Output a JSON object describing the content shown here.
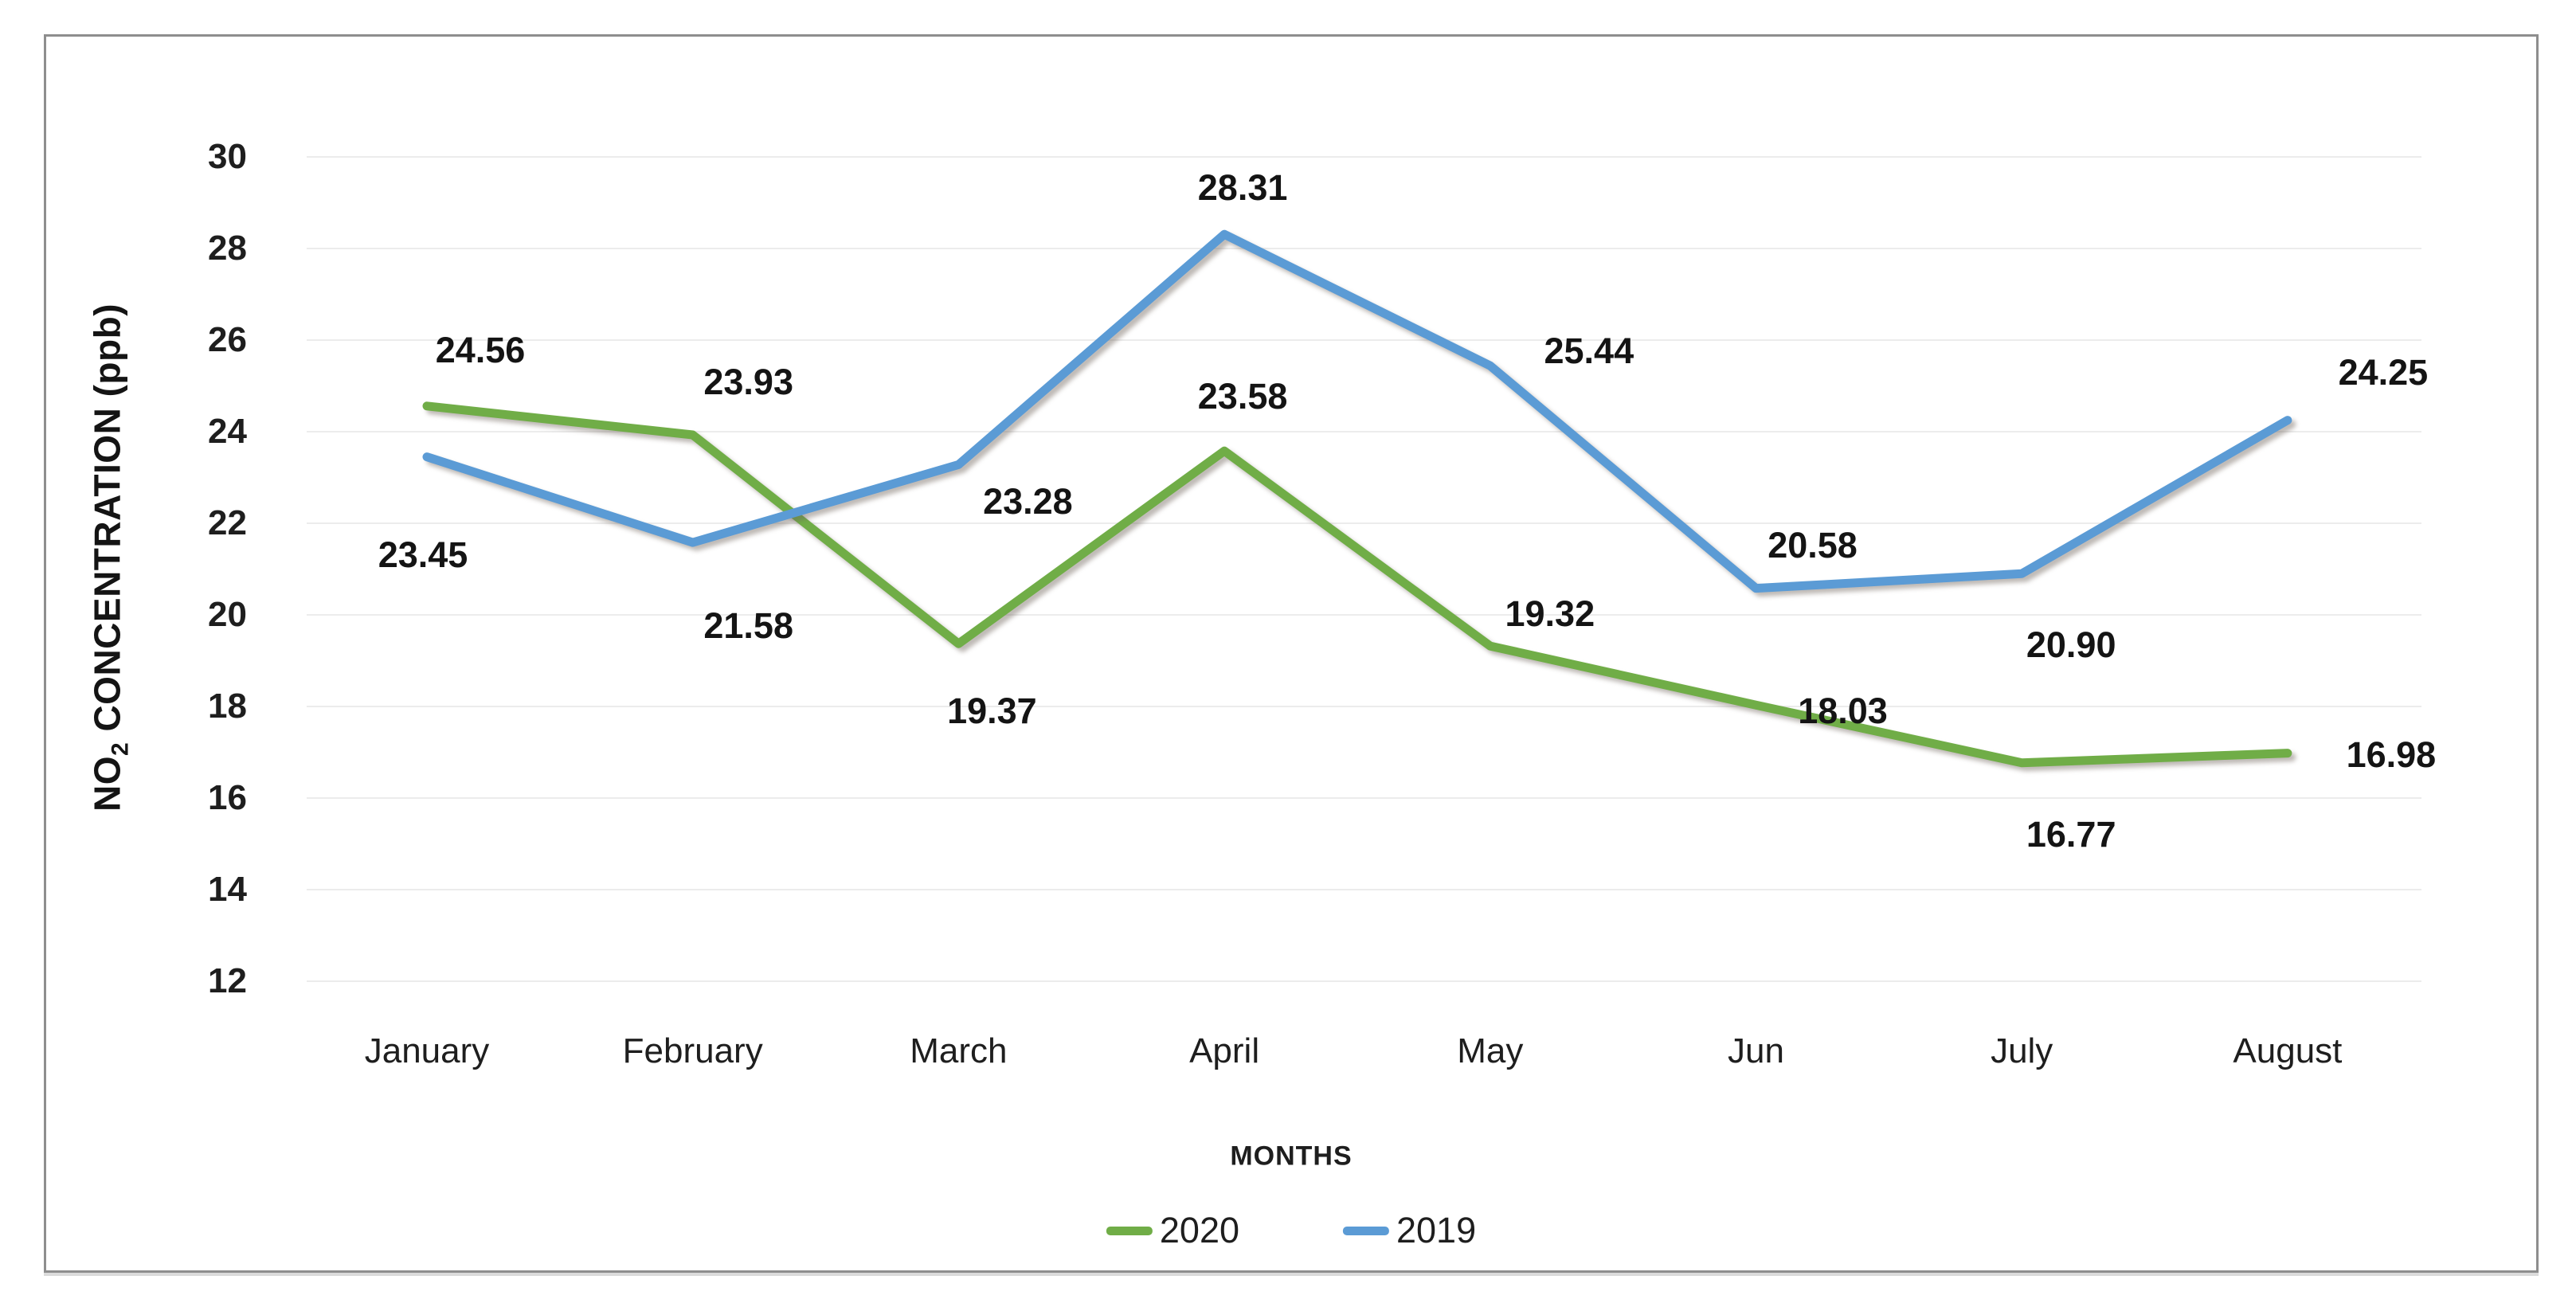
{
  "chart_data": {
    "type": "line",
    "categories": [
      "January",
      "February",
      "March",
      "April",
      "May",
      "Jun",
      "July",
      "August"
    ],
    "series": [
      {
        "name": "2020",
        "color": "#70AD47",
        "values": [
          24.56,
          23.93,
          19.37,
          23.58,
          19.32,
          18.03,
          16.77,
          16.98
        ]
      },
      {
        "name": "2019",
        "color": "#5B9BD5",
        "values": [
          23.45,
          21.58,
          23.28,
          28.31,
          25.44,
          20.58,
          20.9,
          24.25
        ]
      }
    ],
    "xlabel": "MONTHS",
    "ylabel": "NO2 CONCENTRATION (ppb)",
    "ylabel_display": {
      "prefix": "NO",
      "sub": "2",
      "suffix": " CONCENTRATION (ppb)"
    },
    "ylim": [
      12,
      30
    ],
    "yticks": [
      30,
      28,
      26,
      24,
      22,
      20,
      18,
      16,
      14,
      12
    ],
    "value_decimals": 2,
    "grid": true,
    "gridline_color": "#ECECEC",
    "frame_color": "#8e8e8e",
    "text_color": "#141414",
    "legend_position": "bottom",
    "data_labels": true
  }
}
